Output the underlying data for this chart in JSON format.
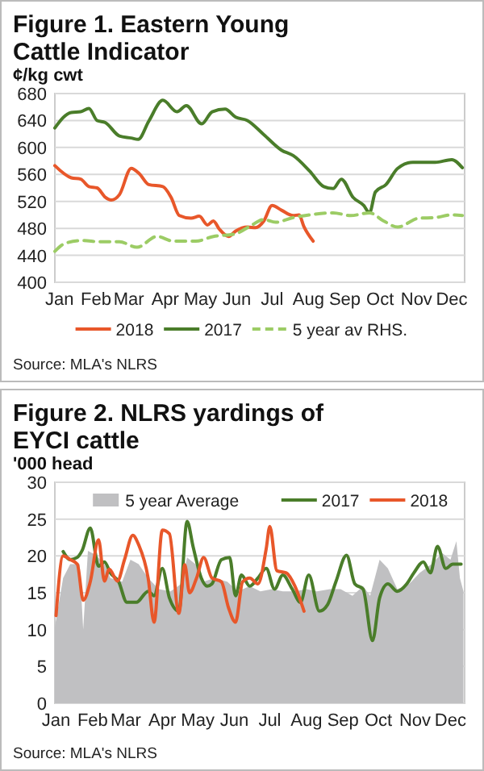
{
  "chart_data": [
    {
      "type": "line",
      "title": "Figure 1. Eastern Young Cattle Indicator",
      "ylabel": "¢/kg cwt",
      "xlim": [
        "--01-12",
        "--12-27"
      ],
      "xticks": [
        {
          "value": "--01-16",
          "label": "Jan"
        },
        {
          "value": "--02-16",
          "label": "Feb"
        },
        {
          "value": "--03-16",
          "label": "Mar"
        },
        {
          "value": "--04-16",
          "label": "Apr"
        },
        {
          "value": "--05-16",
          "label": "May"
        },
        {
          "value": "--06-16",
          "label": "Jun"
        },
        {
          "value": "--07-16",
          "label": "Jul"
        },
        {
          "value": "--08-16",
          "label": "Aug"
        },
        {
          "value": "--09-16",
          "label": "Sep"
        },
        {
          "value": "--10-16",
          "label": "Oct"
        },
        {
          "value": "--11-16",
          "label": "Nov"
        },
        {
          "value": "--12-16",
          "label": "Dec"
        }
      ],
      "ylim": [
        400,
        680
      ],
      "yticks": [
        400,
        440,
        480,
        520,
        560,
        600,
        640,
        680
      ],
      "grid": "y",
      "legend": "bottom",
      "annotations": [
        "Source: MLA's NLRS"
      ],
      "series": [
        {
          "name": "2018",
          "color": "#e8572a",
          "x": [
            "--01-12",
            "--01-26",
            "--02-03",
            "--02-10",
            "--02-17",
            "--02-24",
            "--03-01",
            "--03-08",
            "--03-18",
            "--03-25",
            "--04-02",
            "--04-14",
            "--04-21",
            "--04-28",
            "--05-08",
            "--05-15",
            "--05-22",
            "--05-27",
            "--06-01",
            "--06-09",
            "--06-15",
            "--06-25",
            "--07-02",
            "--07-09",
            "--07-16",
            "--07-24",
            "--08-03",
            "--08-08",
            "--08-12",
            "--08-20"
          ],
          "values": [
            573,
            555,
            553,
            542,
            540,
            526,
            522,
            530,
            569,
            561,
            545,
            542,
            526,
            499,
            495,
            498,
            485,
            491,
            479,
            468,
            476,
            482,
            481,
            491,
            514,
            507,
            499,
            500,
            483,
            461
          ]
        },
        {
          "name": "2017",
          "color": "#4a7d2a",
          "x": [
            "--01-12",
            "--01-26",
            "--02-03",
            "--02-10",
            "--02-17",
            "--02-24",
            "--03-08",
            "--03-18",
            "--03-24",
            "--04-02",
            "--04-14",
            "--04-26",
            "--05-04",
            "--05-17",
            "--05-26",
            "--06-06",
            "--06-15",
            "--06-25",
            "--07-09",
            "--07-24",
            "--08-03",
            "--08-17",
            "--08-29",
            "--09-06",
            "--09-13",
            "--09-23",
            "--10-02",
            "--10-07",
            "--10-12",
            "--10-21",
            "--10-31",
            "--11-13",
            "--12-02",
            "--12-16",
            "--12-25"
          ],
          "values": [
            629,
            652,
            653,
            658,
            640,
            637,
            617,
            614,
            612,
            639,
            670,
            653,
            662,
            635,
            653,
            657,
            645,
            640,
            619,
            596,
            588,
            565,
            542,
            539,
            553,
            526,
            514,
            503,
            534,
            545,
            569,
            578,
            578,
            582,
            570
          ]
        },
        {
          "name": "5 year av RHS.",
          "color": "#9ccc65",
          "line_style": "dashed",
          "x": [
            "--01-12",
            "--01-21",
            "--02-05",
            "--02-19",
            "--03-08",
            "--03-23",
            "--04-09",
            "--04-23",
            "--05-12",
            "--05-27",
            "--06-15",
            "--06-27",
            "--07-09",
            "--07-19",
            "--08-03",
            "--08-17",
            "--09-06",
            "--09-21",
            "--10-07",
            "--10-19",
            "--10-31",
            "--11-18",
            "--12-02",
            "--12-16",
            "--12-25"
          ],
          "values": [
            446,
            458,
            462,
            460,
            460,
            452,
            468,
            461,
            461,
            468,
            472,
            483,
            493,
            489,
            496,
            500,
            503,
            499,
            503,
            491,
            482,
            495,
            496,
            500,
            499
          ]
        }
      ]
    },
    {
      "type": "line",
      "title": "Figure 2.  NLRS yardings of EYCI cattle",
      "ylabel": "'000 head",
      "xlim": [
        "--01-15",
        "--12-28"
      ],
      "xticks": [
        {
          "value": "--01-16",
          "label": "Jan"
        },
        {
          "value": "--02-16",
          "label": "Feb"
        },
        {
          "value": "--03-16",
          "label": "Mar"
        },
        {
          "value": "--04-16",
          "label": "Apr"
        },
        {
          "value": "--05-16",
          "label": "May"
        },
        {
          "value": "--06-16",
          "label": "Jun"
        },
        {
          "value": "--07-16",
          "label": "Jul"
        },
        {
          "value": "--08-16",
          "label": "Aug"
        },
        {
          "value": "--09-16",
          "label": "Sep"
        },
        {
          "value": "--10-16",
          "label": "Oct"
        },
        {
          "value": "--11-16",
          "label": "Nov"
        },
        {
          "value": "--12-16",
          "label": "Dec"
        }
      ],
      "ylim": [
        0,
        30
      ],
      "yticks": [
        0,
        5,
        10,
        15,
        20,
        25,
        30
      ],
      "grid": "y",
      "legend": "top",
      "annotations": [
        "Source: MLA's NLRS"
      ],
      "series": [
        {
          "name": "5 year Average",
          "type": "area",
          "color": "#c0c0c2",
          "x": [
            "--01-15",
            "--01-22",
            "--01-28",
            "--02-05",
            "--02-08",
            "--02-12",
            "--02-19",
            "--02-26",
            "--03-03",
            "--03-13",
            "--03-20",
            "--03-27",
            "--04-04",
            "--04-13",
            "--04-23",
            "--05-02",
            "--05-07",
            "--05-14",
            "--05-21",
            "--05-30",
            "--06-10",
            "--06-19",
            "--06-29",
            "--07-08",
            "--07-18",
            "--07-27",
            "--08-06",
            "--08-16",
            "--08-25",
            "--09-05",
            "--09-14",
            "--09-24",
            "--10-03",
            "--10-09",
            "--10-17",
            "--10-24",
            "--11-01",
            "--11-11",
            "--11-20",
            "--11-30",
            "--12-09",
            "--12-16",
            "--12-21",
            "--12-24",
            "--12-27"
          ],
          "values": [
            10.4,
            17,
            18.9,
            18.9,
            10,
            20.7,
            20.1,
            18.9,
            17,
            16.5,
            19.5,
            18.9,
            17,
            15.5,
            15.2,
            16.2,
            19.8,
            18.9,
            16.5,
            17,
            16.5,
            15.2,
            15.9,
            15.2,
            15.5,
            15.2,
            15.2,
            15.5,
            15.2,
            15.5,
            15.5,
            14.6,
            15.9,
            14.6,
            19.5,
            18.3,
            15.5,
            16.2,
            17.7,
            18.9,
            20.4,
            19.5,
            22,
            17,
            15.2
          ]
        },
        {
          "name": "2017",
          "color": "#4a7d2a",
          "x": [
            "--01-22",
            "--01-28",
            "--02-03",
            "--02-07",
            "--02-14",
            "--02-21",
            "--02-26",
            "--03-03",
            "--03-10",
            "--03-17",
            "--03-25",
            "--04-04",
            "--04-09",
            "--04-16",
            "--04-22",
            "--04-30",
            "--05-07",
            "--05-12",
            "--05-19",
            "--05-24",
            "--05-28",
            "--06-05",
            "--06-12",
            "--06-17",
            "--06-22",
            "--06-29",
            "--07-06",
            "--07-13",
            "--07-20",
            "--07-27",
            "--08-04",
            "--08-11",
            "--08-18",
            "--08-27",
            "--09-03",
            "--09-10",
            "--09-19",
            "--09-26",
            "--10-03",
            "--10-11",
            "--10-17",
            "--10-24",
            "--11-01",
            "--11-09",
            "--11-15",
            "--11-23",
            "--11-29",
            "--12-05",
            "--12-12",
            "--12-18",
            "--12-25"
          ],
          "values": [
            20.6,
            19.5,
            19.8,
            20.7,
            23.8,
            18.6,
            19.2,
            17.7,
            16.5,
            13.7,
            13.7,
            15.2,
            14.6,
            18.3,
            14.3,
            12.5,
            24.7,
            21.3,
            17,
            15.9,
            16.2,
            19.5,
            19.8,
            14.6,
            17.4,
            15.9,
            17,
            18.3,
            15.5,
            17.4,
            15.5,
            13.7,
            17.4,
            12.5,
            13.4,
            16.5,
            20.1,
            16.2,
            15.5,
            8.5,
            14.3,
            16.2,
            15.2,
            16.2,
            17.7,
            19.2,
            17.7,
            21.3,
            18.3,
            18.9,
            18.9
          ]
        },
        {
          "name": "2018",
          "color": "#e8572a",
          "x": [
            "--01-16",
            "--01-22",
            "--01-28",
            "--02-03",
            "--02-08",
            "--02-14",
            "--02-21",
            "--02-26",
            "--03-02",
            "--03-09",
            "--03-15",
            "--03-22",
            "--03-27",
            "--04-04",
            "--04-09",
            "--04-16",
            "--04-22",
            "--04-30",
            "--05-05",
            "--05-09",
            "--05-15",
            "--05-21",
            "--05-28",
            "--06-05",
            "--06-11",
            "--06-17",
            "--06-23",
            "--06-29",
            "--07-06",
            "--07-13",
            "--07-16",
            "--07-22",
            "--07-30",
            "--08-06",
            "--08-14"
          ],
          "values": [
            11.9,
            20,
            19.5,
            18.9,
            14,
            16.5,
            22.2,
            16.6,
            18.2,
            16.6,
            19.5,
            22.8,
            21.5,
            17,
            11,
            23.5,
            23,
            12.2,
            18.8,
            15,
            17,
            19.8,
            17,
            16.5,
            13,
            11,
            16.5,
            17,
            16.2,
            21,
            24,
            18,
            17.7,
            16,
            12.5
          ]
        }
      ]
    }
  ]
}
